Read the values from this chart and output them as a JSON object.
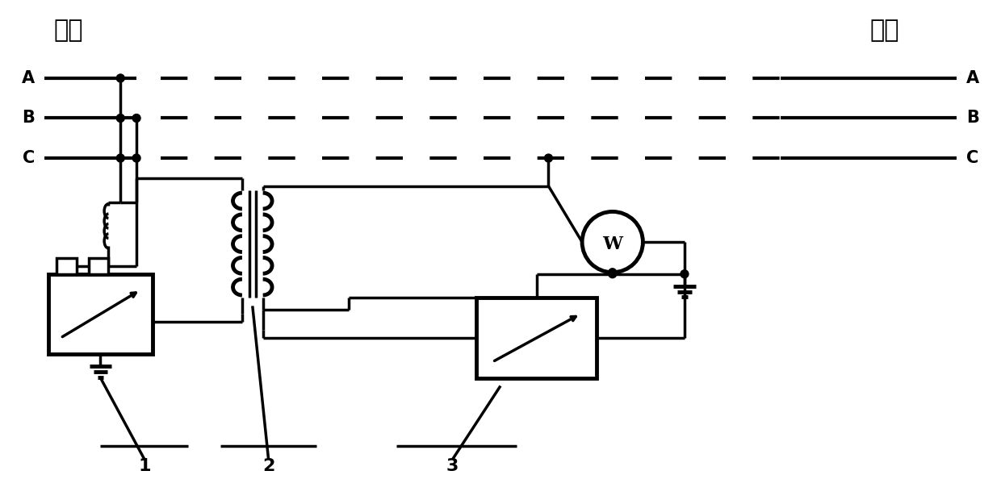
{
  "title_left": "始端",
  "title_right": "末端",
  "label_A": "A",
  "label_B": "B",
  "label_C": "C",
  "label_1": "1",
  "label_2": "2",
  "label_3": "3",
  "line_color": "#000000",
  "bg_color": "#ffffff",
  "fig_width": 12.4,
  "fig_height": 6.2,
  "dpi": 100
}
